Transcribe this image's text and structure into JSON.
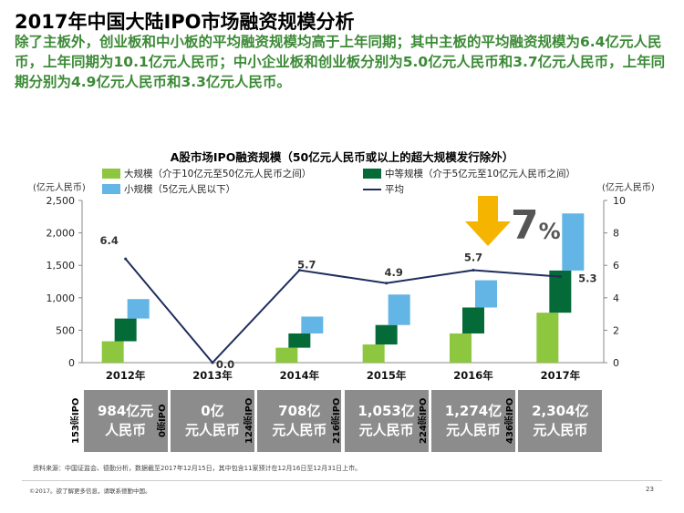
{
  "title": "2017年中国大陆IPO市场融资规模分析",
  "subtitle": "除了主板外，创业板和中小板的平均融资规模均高于上年同期；其中主板的平均融资规模为6.4亿元人民币，上年同期为10.1亿元人民币；中小企业板和创业板分别为5.0亿元人民币和3.7亿元人民币，上年同期分别为4.9亿元人民币和3.3亿元人民币。",
  "colors": {
    "large": "#8dc63f",
    "medium": "#046a38",
    "small": "#62b5e5",
    "average": "#1f2d5c",
    "arrow": "#f5b400",
    "title_green": "#3c8a36"
  },
  "chart_data": {
    "type": "bar",
    "title": "A股市场IPO融资规模（50亿元人民币或以上的超大规模发行除外）",
    "ylabel_left": "(亿元人民币)",
    "ylabel_right": "(亿元人民币)",
    "ylim_left": [
      0,
      2500
    ],
    "ylim_right": [
      0,
      10
    ],
    "yticks_left": [
      "0",
      "500",
      "1,000",
      "1,500",
      "2,000",
      "2,500"
    ],
    "yticks_right": [
      "0",
      "2",
      "4",
      "6",
      "8",
      "10"
    ],
    "categories": [
      "2012年",
      "2013年",
      "2014年",
      "2015年",
      "2016年",
      "2017年"
    ],
    "stacked_floating": true,
    "series": [
      {
        "name": "大规模（介于10亿元至50亿元人民币之间）",
        "key": "large",
        "values": [
          330,
          0,
          230,
          280,
          450,
          770
        ]
      },
      {
        "name": "中等规模（介于5亿元至10亿元人民币之间）",
        "key": "medium",
        "values": [
          350,
          0,
          220,
          300,
          400,
          650
        ]
      },
      {
        "name": "小规模（5亿元人民以下）",
        "key": "small",
        "values": [
          300,
          0,
          260,
          470,
          420,
          880
        ]
      }
    ],
    "average": {
      "name": "平均",
      "values": [
        6.4,
        0.0,
        5.7,
        4.9,
        5.7,
        5.3
      ],
      "labels": [
        "6.4",
        "0.0",
        "5.7",
        "4.9",
        "5.7",
        "5.3"
      ]
    },
    "annotation": {
      "text": "7",
      "suffix": "%"
    },
    "legend_position": "top"
  },
  "totals": [
    {
      "amount": "984亿元",
      "unit": "人民币",
      "count": "153宗IPO"
    },
    {
      "amount": "0亿",
      "unit": "元人民币",
      "count": "0宗IPO"
    },
    {
      "amount": "708亿",
      "unit": "元人民币",
      "count": "124宗IPO"
    },
    {
      "amount": "1,053亿",
      "unit": "元人民币",
      "count": "216宗IPO"
    },
    {
      "amount": "1,274亿",
      "unit": "元人民币",
      "count": "224宗IPO"
    },
    {
      "amount": "2,304亿",
      "unit": "元人民币",
      "count": "436宗IPO"
    }
  ],
  "source": "资料来源：中国证监会、德勤分析，数据截至2017年12月15日，其中包含11家预计在12月16日至12月31日上市。",
  "copyright": "©2017。欲了解更多信息，请联系德勤中国。",
  "page_number": "23"
}
